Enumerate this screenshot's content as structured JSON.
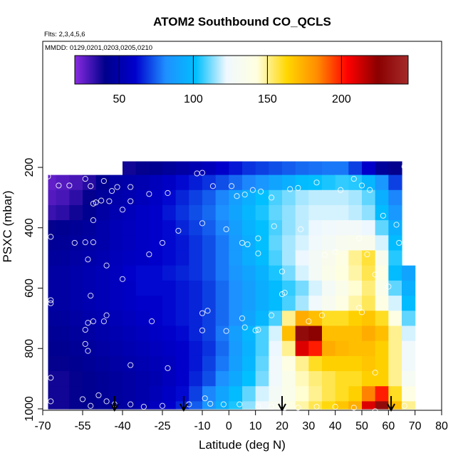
{
  "chart_data": {
    "type": "heatmap",
    "title": "ATOM2 Southbound CO_QCLS",
    "annotations": [
      "Flts: 2,3,4,5,6",
      "MMDD: 0129,0201,0203,0205,0210"
    ],
    "xlabel": "Latitude (deg N)",
    "ylabel": "PSXC (mbar)",
    "xlim": [
      -70,
      80
    ],
    "ylim": [
      1000,
      50
    ],
    "y_reversed": true,
    "xticks": [
      -70,
      -55,
      -40,
      -25,
      -10,
      0,
      10,
      20,
      30,
      40,
      50,
      60,
      70,
      80
    ],
    "xtick_labels": [
      "-70",
      "-55",
      "-40",
      "-25",
      "-10",
      "0",
      "10",
      "20",
      "30",
      "40",
      "50",
      "60",
      "70",
      "80"
    ],
    "yticks": [
      200,
      400,
      600,
      800,
      1000
    ],
    "ytick_labels": [
      "200",
      "400",
      "600",
      "800",
      "1000"
    ],
    "colorbar": {
      "range": [
        20,
        245
      ],
      "ticks": [
        50,
        100,
        150,
        200
      ],
      "tick_labels": [
        "50",
        "100",
        "150",
        "200"
      ],
      "colors": [
        "#8a2be2",
        "#00008b",
        "#0000cd",
        "#1e90ff",
        "#00bfff",
        "#f0f8ff",
        "#ffffe0",
        "#ffd700",
        "#ff8c00",
        "#ff0000",
        "#8b0000",
        "#a52a2a"
      ]
    },
    "profile_latitudes": [
      -43,
      -17,
      20,
      61
    ],
    "cell_dx": 5,
    "cell_dp": 50,
    "grid_lat": [
      -67.5,
      -62.5,
      -57.5,
      -52.5,
      -47.5,
      -42.5,
      -37.5,
      -32.5,
      -27.5,
      -22.5,
      -17.5,
      -12.5,
      -7.5,
      -2.5,
      2.5,
      7.5,
      12.5,
      17.5,
      22.5,
      27.5,
      32.5,
      37.5,
      42.5,
      47.5,
      52.5,
      57.5,
      62.5,
      67.5
    ],
    "grid_p": [
      200,
      250,
      300,
      350,
      400,
      450,
      500,
      550,
      600,
      650,
      700,
      750,
      800,
      850,
      900,
      950,
      1000
    ],
    "z": [
      [
        null,
        null,
        null,
        null,
        null,
        null,
        38,
        40,
        42,
        45,
        48,
        52,
        55,
        60,
        64,
        68,
        70,
        72,
        74,
        76,
        77,
        78,
        78,
        70,
        60,
        45,
        40,
        null
      ],
      [
        26,
        28,
        30,
        35,
        42,
        48,
        50,
        52,
        55,
        58,
        62,
        65,
        68,
        72,
        76,
        80,
        84,
        90,
        95,
        100,
        102,
        104,
        106,
        105,
        98,
        85,
        70,
        null
      ],
      [
        28,
        30,
        34,
        40,
        45,
        50,
        52,
        55,
        58,
        62,
        66,
        70,
        74,
        80,
        88,
        95,
        102,
        108,
        112,
        116,
        118,
        118,
        118,
        116,
        110,
        95,
        80,
        null
      ],
      [
        32,
        34,
        38,
        42,
        48,
        52,
        55,
        58,
        60,
        64,
        68,
        72,
        76,
        82,
        90,
        98,
        104,
        110,
        114,
        118,
        120,
        120,
        120,
        118,
        114,
        100,
        85,
        null
      ],
      [
        40,
        42,
        44,
        46,
        50,
        54,
        56,
        58,
        60,
        62,
        66,
        70,
        74,
        80,
        88,
        96,
        102,
        108,
        114,
        118,
        122,
        124,
        126,
        126,
        122,
        110,
        95,
        null
      ],
      [
        44,
        44,
        46,
        48,
        50,
        54,
        56,
        58,
        60,
        62,
        64,
        68,
        72,
        78,
        86,
        94,
        102,
        110,
        116,
        120,
        124,
        128,
        132,
        135,
        134,
        120,
        100,
        null
      ],
      [
        46,
        46,
        48,
        50,
        52,
        55,
        57,
        58,
        60,
        62,
        64,
        68,
        72,
        78,
        86,
        94,
        100,
        108,
        116,
        122,
        128,
        134,
        140,
        150,
        158,
        135,
        105,
        null
      ],
      [
        48,
        48,
        50,
        52,
        54,
        56,
        60,
        62,
        62,
        64,
        66,
        68,
        72,
        78,
        84,
        90,
        96,
        104,
        112,
        120,
        128,
        136,
        142,
        148,
        156,
        140,
        100,
        90
      ],
      [
        48,
        48,
        50,
        52,
        54,
        56,
        58,
        62,
        62,
        62,
        64,
        66,
        70,
        76,
        82,
        88,
        94,
        100,
        106,
        112,
        120,
        128,
        136,
        144,
        152,
        136,
        110,
        95
      ],
      [
        48,
        48,
        50,
        52,
        54,
        56,
        58,
        60,
        60,
        62,
        64,
        66,
        70,
        76,
        82,
        88,
        94,
        100,
        108,
        116,
        124,
        132,
        140,
        148,
        155,
        140,
        120,
        100
      ],
      [
        46,
        46,
        48,
        50,
        52,
        54,
        56,
        58,
        60,
        62,
        64,
        66,
        70,
        76,
        82,
        90,
        98,
        108,
        150,
        175,
        170,
        160,
        160,
        165,
        168,
        160,
        140,
        110
      ],
      [
        44,
        44,
        46,
        48,
        50,
        52,
        54,
        56,
        58,
        60,
        62,
        66,
        70,
        78,
        88,
        98,
        108,
        120,
        170,
        230,
        225,
        170,
        170,
        170,
        175,
        170,
        150,
        120
      ],
      [
        42,
        42,
        44,
        46,
        48,
        50,
        52,
        54,
        56,
        58,
        60,
        64,
        68,
        76,
        86,
        96,
        108,
        122,
        150,
        210,
        200,
        175,
        172,
        170,
        170,
        165,
        150,
        125
      ],
      [
        40,
        40,
        42,
        44,
        46,
        48,
        50,
        52,
        54,
        56,
        60,
        64,
        70,
        78,
        88,
        98,
        110,
        124,
        140,
        150,
        160,
        165,
        165,
        165,
        168,
        165,
        150,
        125
      ],
      [
        38,
        38,
        40,
        42,
        44,
        46,
        48,
        50,
        52,
        56,
        60,
        66,
        72,
        82,
        92,
        102,
        112,
        124,
        136,
        146,
        152,
        156,
        160,
        160,
        165,
        165,
        150,
        130
      ],
      [
        38,
        38,
        40,
        42,
        44,
        46,
        48,
        50,
        54,
        58,
        62,
        70,
        80,
        90,
        100,
        110,
        120,
        128,
        136,
        144,
        150,
        156,
        160,
        165,
        185,
        200,
        160,
        140
      ],
      [
        38,
        38,
        40,
        42,
        44,
        46,
        48,
        52,
        56,
        60,
        66,
        74,
        84,
        94,
        104,
        114,
        124,
        132,
        140,
        148,
        156,
        162,
        168,
        175,
        210,
        230,
        170,
        150
      ]
    ],
    "points": [
      {
        "x": -68,
        "p": 230
      },
      {
        "x": -64,
        "p": 260
      },
      {
        "x": -60,
        "p": 260
      },
      {
        "x": -54,
        "p": 238
      },
      {
        "x": -52,
        "p": 262
      },
      {
        "x": -51,
        "p": 320
      },
      {
        "x": -47,
        "p": 245
      },
      {
        "x": -44,
        "p": 278
      },
      {
        "x": -42,
        "p": 265
      },
      {
        "x": -37,
        "p": 265
      },
      {
        "x": -30,
        "p": 288
      },
      {
        "x": -23,
        "p": 285
      },
      {
        "x": -12,
        "p": 220
      },
      {
        "x": -10,
        "p": 218
      },
      {
        "x": -6,
        "p": 262
      },
      {
        "x": 1,
        "p": 262
      },
      {
        "x": 3,
        "p": 295
      },
      {
        "x": 6,
        "p": 290
      },
      {
        "x": 9,
        "p": 275
      },
      {
        "x": 12,
        "p": 280
      },
      {
        "x": 16,
        "p": 300
      },
      {
        "x": 23,
        "p": 272
      },
      {
        "x": 26,
        "p": 268
      },
      {
        "x": 33,
        "p": 250
      },
      {
        "x": 42,
        "p": 275
      },
      {
        "x": 47,
        "p": 238
      },
      {
        "x": 50,
        "p": 260
      },
      {
        "x": 53,
        "p": 275
      },
      {
        "x": 66,
        "p": 197
      },
      {
        "x": 69,
        "p": 197
      },
      {
        "x": 70,
        "p": 265
      },
      {
        "x": -50,
        "p": 316
      },
      {
        "x": -48,
        "p": 310
      },
      {
        "x": -45,
        "p": 312
      },
      {
        "x": -40,
        "p": 340
      },
      {
        "x": -51,
        "p": 375
      },
      {
        "x": -37,
        "p": 312
      },
      {
        "x": -19,
        "p": 410
      },
      {
        "x": -10,
        "p": 385
      },
      {
        "x": -1,
        "p": 405
      },
      {
        "x": 11,
        "p": 435
      },
      {
        "x": 5,
        "p": 450
      },
      {
        "x": 7,
        "p": 455
      },
      {
        "x": 17,
        "p": 395
      },
      {
        "x": 27,
        "p": 405
      },
      {
        "x": 36,
        "p": 490
      },
      {
        "x": 40,
        "p": 480
      },
      {
        "x": 49,
        "p": 435
      },
      {
        "x": 52,
        "p": 488
      },
      {
        "x": 58,
        "p": 360
      },
      {
        "x": 63,
        "p": 390
      },
      {
        "x": 64,
        "p": 450
      },
      {
        "x": -67,
        "p": 430
      },
      {
        "x": -58,
        "p": 450
      },
      {
        "x": -54,
        "p": 448
      },
      {
        "x": -51,
        "p": 448
      },
      {
        "x": -53,
        "p": 505
      },
      {
        "x": -30,
        "p": 488
      },
      {
        "x": -25,
        "p": 450
      },
      {
        "x": -46,
        "p": 525
      },
      {
        "x": -40,
        "p": 570
      },
      {
        "x": -52,
        "p": 625
      },
      {
        "x": -67,
        "p": 640
      },
      {
        "x": -67,
        "p": 650
      },
      {
        "x": 11,
        "p": 485
      },
      {
        "x": 20,
        "p": 545
      },
      {
        "x": 55,
        "p": 555
      },
      {
        "x": 60,
        "p": 595
      },
      {
        "x": 21,
        "p": 615
      },
      {
        "x": 20,
        "p": 620
      },
      {
        "x": -46,
        "p": 690
      },
      {
        "x": -29,
        "p": 710
      },
      {
        "x": -10,
        "p": 683
      },
      {
        "x": -8,
        "p": 675
      },
      {
        "x": -53,
        "p": 715
      },
      {
        "x": -51,
        "p": 710
      },
      {
        "x": -54,
        "p": 738
      },
      {
        "x": -47,
        "p": 710
      },
      {
        "x": 5,
        "p": 700
      },
      {
        "x": 6,
        "p": 730
      },
      {
        "x": -10,
        "p": 740
      },
      {
        "x": -1,
        "p": 742
      },
      {
        "x": 10,
        "p": 740
      },
      {
        "x": 11,
        "p": 738
      },
      {
        "x": 16,
        "p": 690
      },
      {
        "x": 35,
        "p": 690
      },
      {
        "x": 50,
        "p": 680
      },
      {
        "x": 49,
        "p": 665
      },
      {
        "x": 30,
        "p": 710
      },
      {
        "x": -54,
        "p": 785
      },
      {
        "x": -53,
        "p": 808
      },
      {
        "x": -37,
        "p": 855
      },
      {
        "x": -23,
        "p": 865
      },
      {
        "x": -67,
        "p": 897
      },
      {
        "x": 55,
        "p": 880
      },
      {
        "x": -67,
        "p": 975
      },
      {
        "x": -55,
        "p": 968
      },
      {
        "x": -52,
        "p": 990
      },
      {
        "x": -49,
        "p": 955
      },
      {
        "x": -46,
        "p": 975
      },
      {
        "x": -43,
        "p": 985
      },
      {
        "x": -37,
        "p": 985
      },
      {
        "x": -32,
        "p": 993
      },
      {
        "x": -25,
        "p": 990
      },
      {
        "x": -15,
        "p": 985
      },
      {
        "x": -9,
        "p": 965
      },
      {
        "x": -7,
        "p": 983
      },
      {
        "x": -2,
        "p": 985
      },
      {
        "x": 4,
        "p": 985
      },
      {
        "x": 11,
        "p": 993
      },
      {
        "x": 16,
        "p": 993
      },
      {
        "x": 21,
        "p": 996
      },
      {
        "x": 26,
        "p": 996
      },
      {
        "x": 33,
        "p": 993
      },
      {
        "x": 40,
        "p": 993
      },
      {
        "x": 47,
        "p": 996
      },
      {
        "x": 55,
        "p": 1008
      },
      {
        "x": 66,
        "p": 990
      },
      {
        "x": 72,
        "p": 992
      }
    ]
  }
}
